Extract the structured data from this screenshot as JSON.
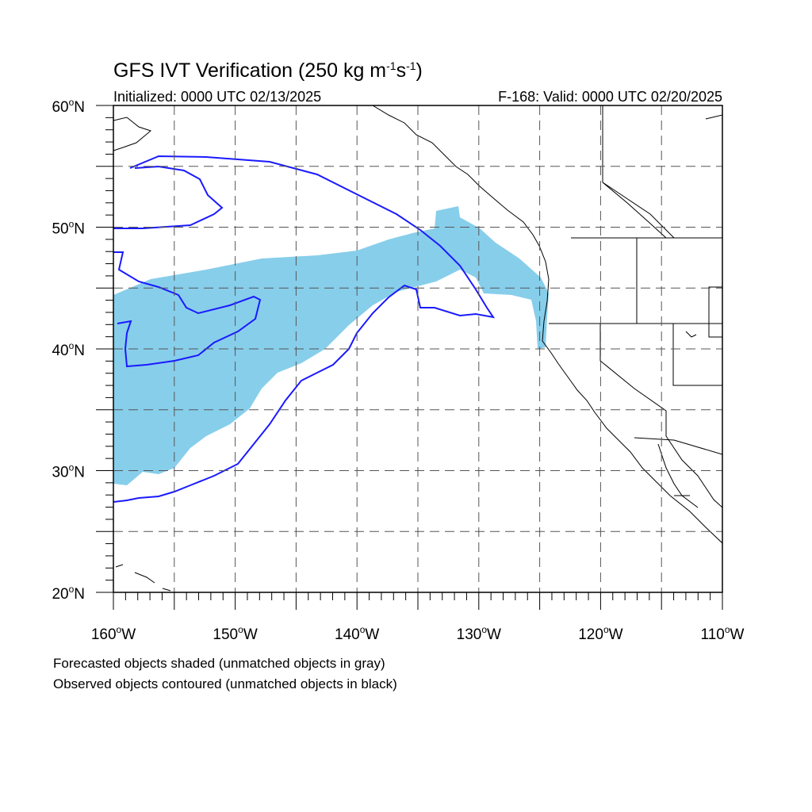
{
  "header": {
    "title_main": "GFS IVT Verification (250 kg m",
    "title_sup1": "-1",
    "title_mid": "s",
    "title_sup2": "-1",
    "title_end": ")",
    "initialized": "Initialized: 0000 UTC 02/13/2025",
    "valid": "F-168: Valid: 0000 UTC 02/20/2025"
  },
  "map": {
    "lon_range": [
      -160,
      -110
    ],
    "lat_range": [
      20,
      60
    ],
    "lat_labels": [
      {
        "lat": 60,
        "num": "60",
        "sup": "o",
        "suffix": "N"
      },
      {
        "lat": 50,
        "num": "50",
        "sup": "o",
        "suffix": "N"
      },
      {
        "lat": 40,
        "num": "40",
        "sup": "o",
        "suffix": "N"
      },
      {
        "lat": 30,
        "num": "30",
        "sup": "o",
        "suffix": "N"
      },
      {
        "lat": 20,
        "num": "20",
        "sup": "o",
        "suffix": "N"
      }
    ],
    "lon_labels": [
      {
        "lon": -160,
        "num": "160",
        "sup": "o",
        "suffix": "W"
      },
      {
        "lon": -150,
        "num": "150",
        "sup": "o",
        "suffix": "W"
      },
      {
        "lon": -140,
        "num": "140",
        "sup": "o",
        "suffix": "W"
      },
      {
        "lon": -130,
        "num": "130",
        "sup": "o",
        "suffix": "W"
      },
      {
        "lon": -120,
        "num": "120",
        "sup": "o",
        "suffix": "W"
      },
      {
        "lon": -110,
        "num": "110",
        "sup": "o",
        "suffix": "W"
      }
    ],
    "grid_lons": [
      -155,
      -150,
      -145,
      -140,
      -135,
      -130,
      -125,
      -120,
      -115
    ],
    "grid_lats": [
      25,
      30,
      35,
      40,
      45,
      50,
      55
    ],
    "colors": {
      "forecast_fill": "#87ceeb",
      "observed_contour": "#1a1aff",
      "coastline": "#000000",
      "grid": "#555555"
    }
  },
  "footer": {
    "line1": "Forecasted objects shaded (unmatched objects in gray)",
    "line2": "Observed objects contoured (unmatched objects in black)"
  }
}
